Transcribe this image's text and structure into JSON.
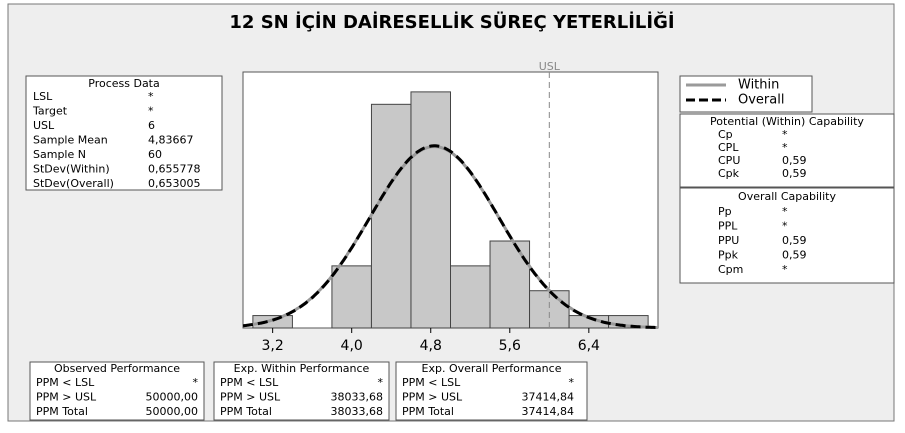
{
  "chart_data": {
    "type": "histogram",
    "title": "12 SN İÇİN DAİRESELLİK SÜREÇ YETERLİLİĞİ",
    "bins": [
      3.0,
      3.4,
      3.8,
      4.2,
      4.6,
      5.0,
      5.4,
      5.8,
      6.2,
      6.6,
      7.0
    ],
    "values": [
      1,
      0,
      5,
      18,
      19,
      5,
      7,
      3,
      1,
      1
    ],
    "color": "#c8c8c8",
    "xlim": [
      2.9,
      7.1
    ],
    "xticks": [
      {
        "value": 3.2,
        "label": "3,2"
      },
      {
        "value": 4.0,
        "label": "4,0"
      },
      {
        "value": 4.8,
        "label": "4,8"
      },
      {
        "value": 5.6,
        "label": "5,6"
      },
      {
        "value": 6.4,
        "label": "6,4"
      }
    ],
    "ylim": [
      0,
      20.6
    ],
    "reference_label": "USL",
    "series": [
      {
        "name": "Within",
        "color": "#9a9a9a",
        "dashed": false
      },
      {
        "name": "Overall",
        "color": "#000000",
        "dashed": true
      }
    ],
    "process_data": {
      "title": "Process Data",
      "rows": [
        {
          "label": "LSL",
          "value": "*"
        },
        {
          "label": "Target",
          "value": "*"
        },
        {
          "label": "USL",
          "value": 6
        },
        {
          "label": "Sample Mean",
          "value": 4.83667,
          "value_label": "4,83667"
        },
        {
          "label": "Sample N",
          "value": 60
        },
        {
          "label": "StDev(Within)",
          "value": 0.655778,
          "value_label": "0,655778"
        },
        {
          "label": "StDev(Overall)",
          "value": 0.653005,
          "value_label": "0,653005"
        }
      ]
    },
    "potential": {
      "title": "Potential (Within) Capability",
      "rows": [
        [
          "Cp",
          "*"
        ],
        [
          "CPL",
          "*"
        ],
        [
          "CPU",
          "0,59"
        ],
        [
          "Cpk",
          "0,59"
        ]
      ]
    },
    "overall": {
      "title": "Overall Capability",
      "rows": [
        [
          "Pp",
          "*"
        ],
        [
          "PPL",
          "*"
        ],
        [
          "PPU",
          "0,59"
        ],
        [
          "Ppk",
          "0,59"
        ],
        [
          "Cpm",
          "*"
        ]
      ]
    },
    "observed": {
      "title": "Observed Performance",
      "rows": [
        [
          "PPM < LSL",
          "*"
        ],
        [
          "PPM > USL",
          "50000,00"
        ],
        [
          "PPM Total",
          "50000,00"
        ]
      ]
    },
    "exp_within": {
      "title": "Exp. Within Performance",
      "rows": [
        [
          "PPM < LSL",
          "*"
        ],
        [
          "PPM > USL",
          "38033,68"
        ],
        [
          "PPM Total",
          "38033,68"
        ]
      ]
    },
    "exp_overall": {
      "title": "Exp. Overall Performance",
      "rows": [
        [
          "PPM < LSL",
          "*"
        ],
        [
          "PPM > USL",
          "37414,84"
        ],
        [
          "PPM Total",
          "37414,84"
        ]
      ]
    }
  }
}
